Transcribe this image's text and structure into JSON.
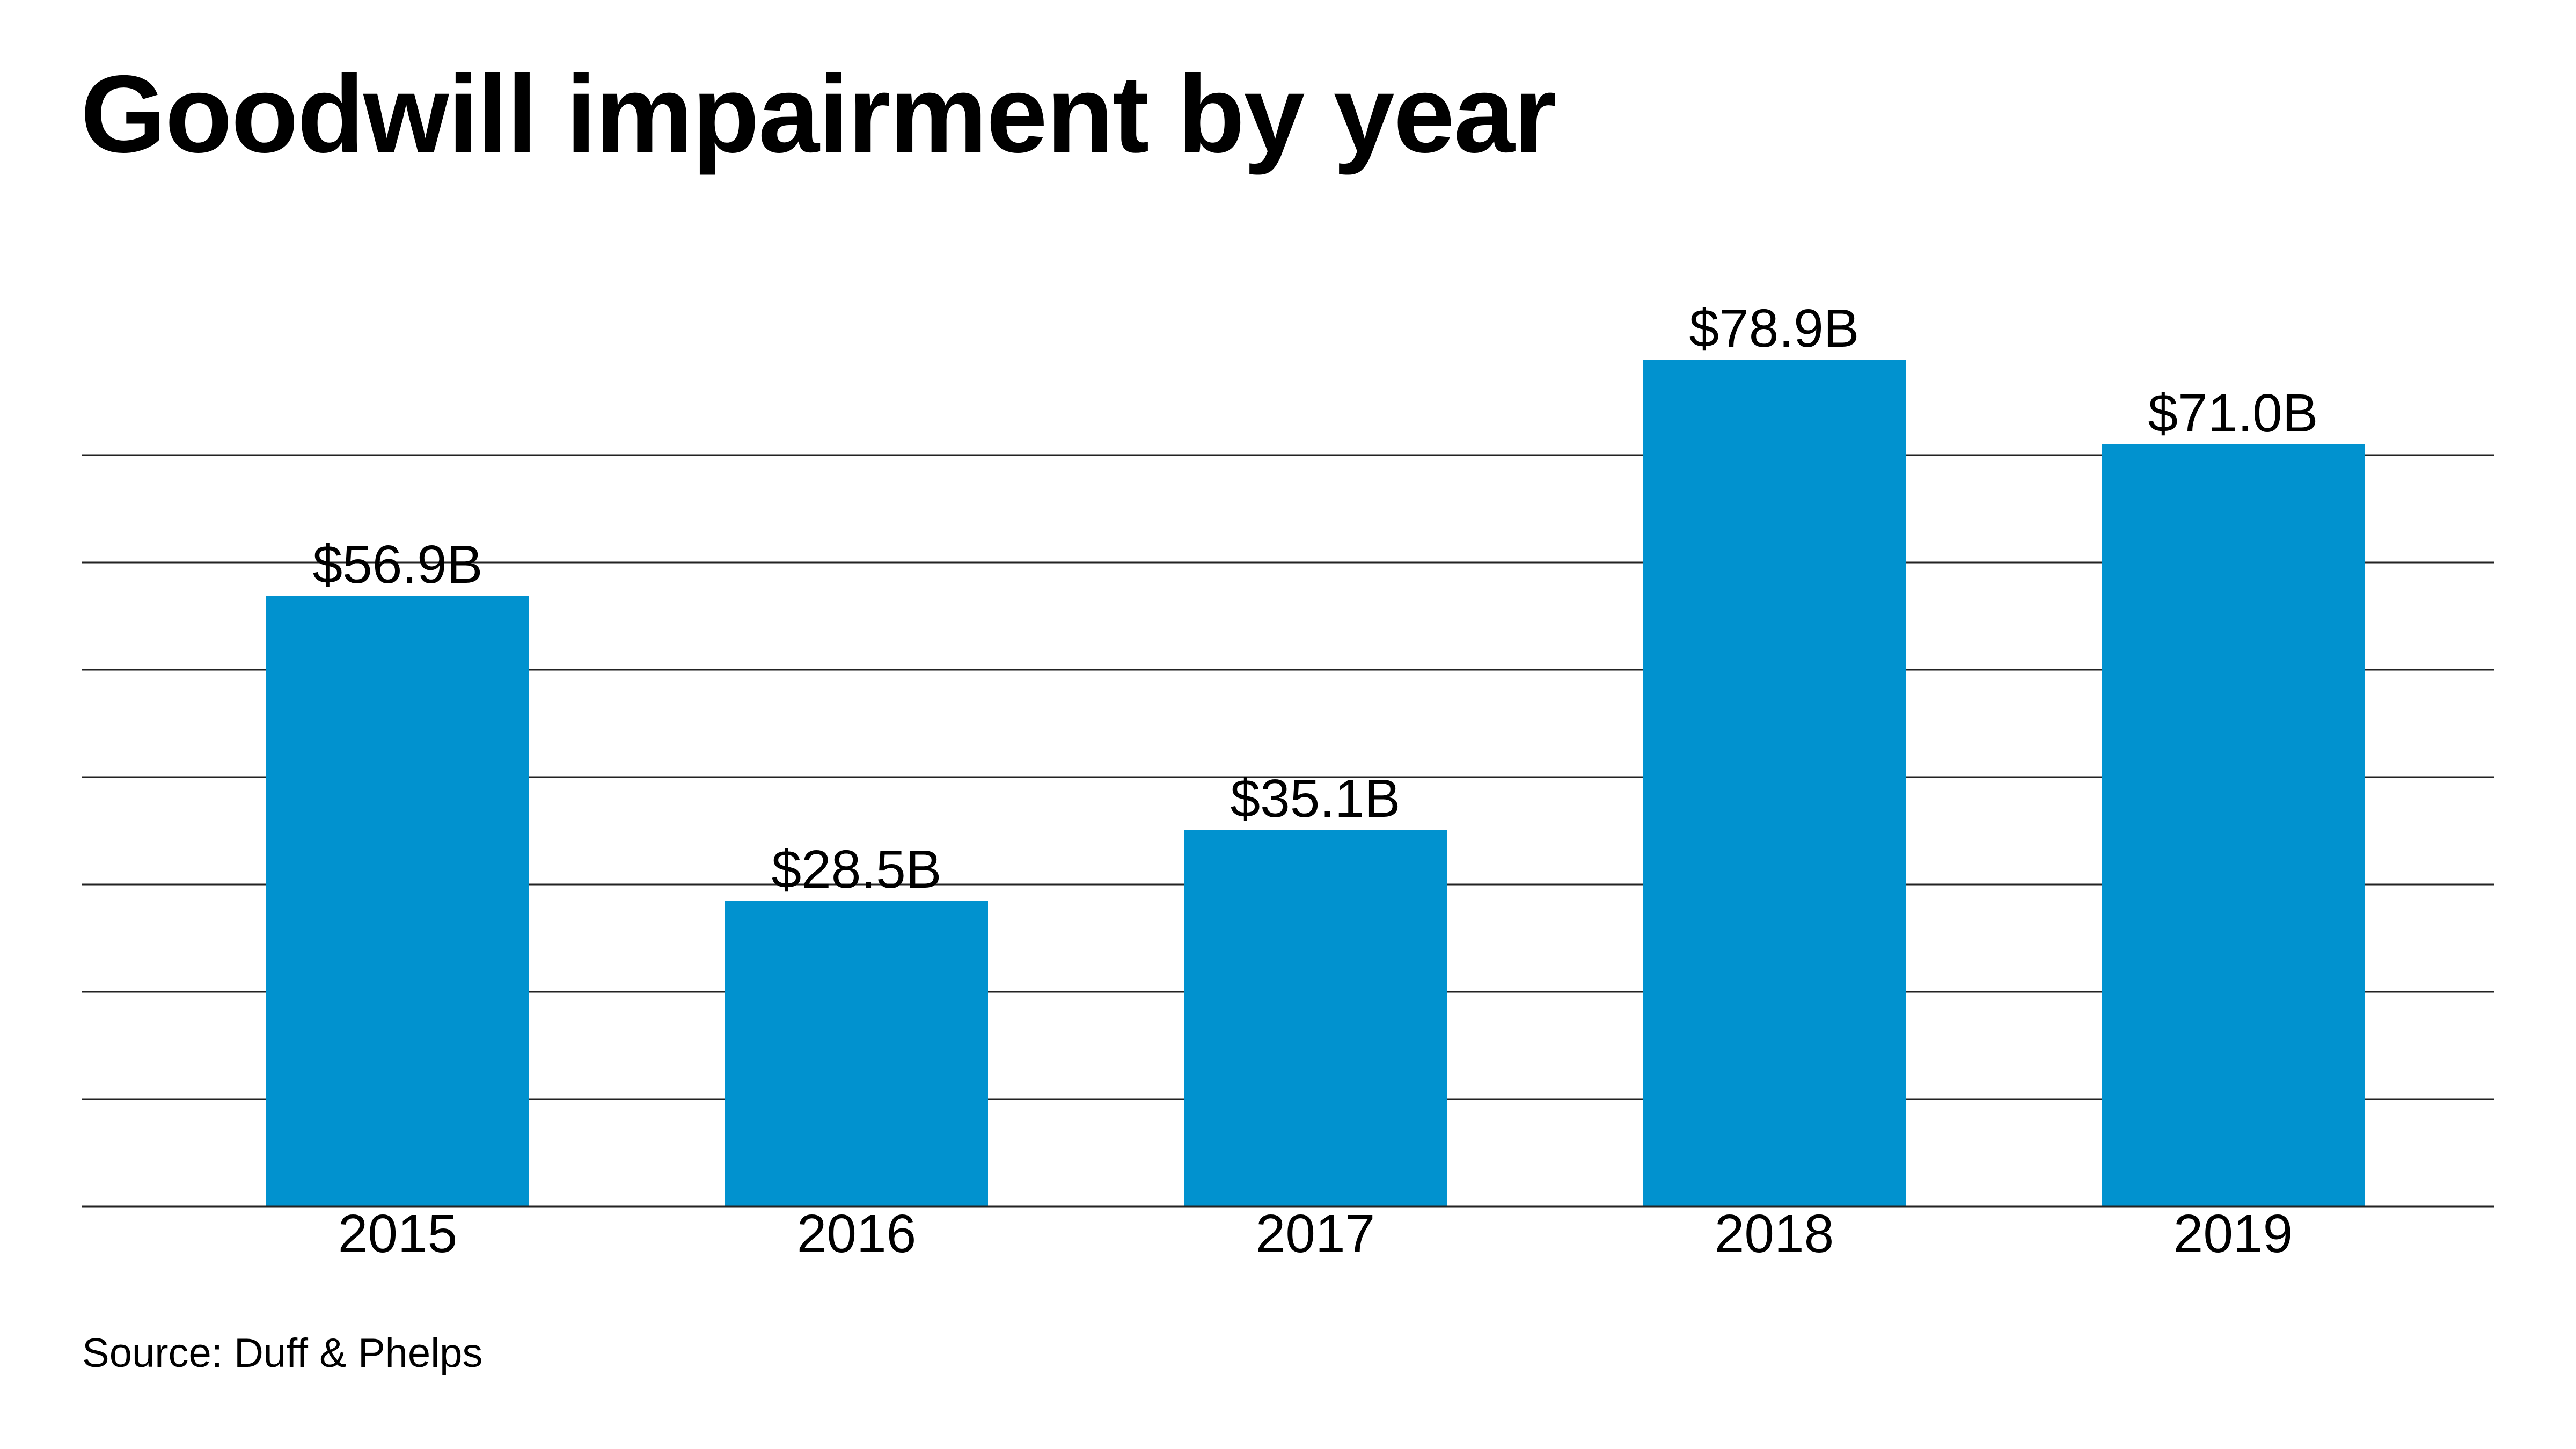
{
  "chart_data": {
    "type": "bar",
    "title": "Goodwill impairment by year",
    "categories": [
      "2015",
      "2016",
      "2017",
      "2018",
      "2019"
    ],
    "values": [
      56.9,
      28.5,
      35.1,
      78.9,
      71.0
    ],
    "data_labels": [
      "$56.9B",
      "$28.5B",
      "$35.1B",
      "$78.9B",
      "$71.0B"
    ],
    "xlabel": "",
    "ylabel": "",
    "ylim": [
      0,
      80
    ],
    "gridlines": [
      10,
      20,
      30,
      40,
      50,
      60,
      70
    ],
    "grid": true,
    "y_tick_labels_shown": false,
    "bar_color": "#0192CF",
    "source": "Source: Duff & Phelps"
  }
}
